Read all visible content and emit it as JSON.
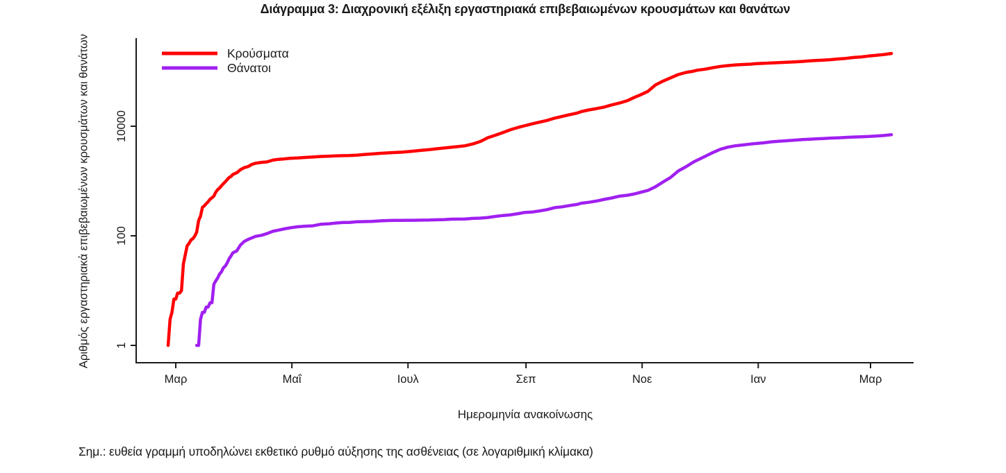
{
  "title": "Διάγραμμα 3: Διαχρονική εξέλιξη εργαστηριακά επιβεβαιωμένων κρουσμάτων και θανάτων",
  "note": "Σημ.: ευθεία γραμμή υποδηλώνει εκθετικό ρυθμό αύξησης της ασθένειας (σε λογαριθμική κλίμακα)",
  "chart_data": {
    "type": "line",
    "title": "Διάγραμμα 3: Διαχρονική εξέλιξη εργαστηριακά επιβεβαιωμένων κρουσμάτων και θανάτων",
    "xlabel": "Ημερομηνία ανακοίνωσης",
    "ylabel": "Αριθμός εργαστηριακά επιβεβαιωμένων κρουσμάτων και θανάτων",
    "y_scale": "log",
    "grid": false,
    "legend_position": "top-left",
    "y_ticks": [
      {
        "value": 1,
        "label": "1"
      },
      {
        "value": 100,
        "label": "100"
      },
      {
        "value": 10000,
        "label": "10000"
      }
    ],
    "x_ticks": [
      {
        "date": "2020-03-01",
        "label": "Μαρ"
      },
      {
        "date": "2020-05-01",
        "label": "Μαΐ"
      },
      {
        "date": "2020-07-01",
        "label": "Ιουλ"
      },
      {
        "date": "2020-09-01",
        "label": "Σεπ"
      },
      {
        "date": "2020-11-01",
        "label": "Νοε"
      },
      {
        "date": "2021-01-01",
        "label": "Ιαν"
      },
      {
        "date": "2021-03-01",
        "label": "Μαρ"
      }
    ],
    "series": [
      {
        "name": "Κρούσματα",
        "color": "#ff0000",
        "points": [
          [
            "2020-02-26",
            1
          ],
          [
            "2020-02-27",
            3
          ],
          [
            "2020-02-28",
            4
          ],
          [
            "2020-02-29",
            7
          ],
          [
            "2020-03-01",
            7
          ],
          [
            "2020-03-02",
            9
          ],
          [
            "2020-03-03",
            9
          ],
          [
            "2020-03-04",
            10
          ],
          [
            "2020-03-05",
            31
          ],
          [
            "2020-03-06",
            45
          ],
          [
            "2020-03-07",
            66
          ],
          [
            "2020-03-08",
            73
          ],
          [
            "2020-03-09",
            84
          ],
          [
            "2020-03-10",
            89
          ],
          [
            "2020-03-11",
            99
          ],
          [
            "2020-03-12",
            117
          ],
          [
            "2020-03-13",
            190
          ],
          [
            "2020-03-14",
            228
          ],
          [
            "2020-03-15",
            331
          ],
          [
            "2020-03-16",
            352
          ],
          [
            "2020-03-17",
            387
          ],
          [
            "2020-03-18",
            418
          ],
          [
            "2020-03-19",
            464
          ],
          [
            "2020-03-20",
            495
          ],
          [
            "2020-03-21",
            530
          ],
          [
            "2020-03-22",
            624
          ],
          [
            "2020-03-23",
            695
          ],
          [
            "2020-03-24",
            743
          ],
          [
            "2020-03-25",
            821
          ],
          [
            "2020-03-26",
            892
          ],
          [
            "2020-03-27",
            966
          ],
          [
            "2020-03-28",
            1061
          ],
          [
            "2020-03-29",
            1156
          ],
          [
            "2020-03-30",
            1212
          ],
          [
            "2020-03-31",
            1314
          ],
          [
            "2020-04-02",
            1415
          ],
          [
            "2020-04-04",
            1613
          ],
          [
            "2020-04-06",
            1755
          ],
          [
            "2020-04-08",
            1832
          ],
          [
            "2020-04-10",
            2011
          ],
          [
            "2020-04-12",
            2114
          ],
          [
            "2020-04-15",
            2192
          ],
          [
            "2020-04-18",
            2235
          ],
          [
            "2020-04-21",
            2401
          ],
          [
            "2020-04-24",
            2490
          ],
          [
            "2020-04-27",
            2534
          ],
          [
            "2020-04-30",
            2591
          ],
          [
            "2020-05-04",
            2632
          ],
          [
            "2020-05-08",
            2691
          ],
          [
            "2020-05-12",
            2744
          ],
          [
            "2020-05-16",
            2810
          ],
          [
            "2020-05-20",
            2840
          ],
          [
            "2020-05-24",
            2876
          ],
          [
            "2020-05-28",
            2906
          ],
          [
            "2020-05-31",
            2915
          ],
          [
            "2020-06-04",
            2967
          ],
          [
            "2020-06-08",
            3049
          ],
          [
            "2020-06-12",
            3121
          ],
          [
            "2020-06-16",
            3203
          ],
          [
            "2020-06-20",
            3256
          ],
          [
            "2020-06-24",
            3310
          ],
          [
            "2020-06-28",
            3366
          ],
          [
            "2020-06-30",
            3409
          ],
          [
            "2020-07-04",
            3511
          ],
          [
            "2020-07-08",
            3622
          ],
          [
            "2020-07-12",
            3732
          ],
          [
            "2020-07-16",
            3883
          ],
          [
            "2020-07-20",
            4007
          ],
          [
            "2020-07-24",
            4135
          ],
          [
            "2020-07-28",
            4279
          ],
          [
            "2020-07-31",
            4401
          ],
          [
            "2020-08-04",
            4737
          ],
          [
            "2020-08-08",
            5270
          ],
          [
            "2020-08-12",
            6177
          ],
          [
            "2020-08-16",
            6858
          ],
          [
            "2020-08-20",
            7684
          ],
          [
            "2020-08-24",
            8664
          ],
          [
            "2020-08-28",
            9531
          ],
          [
            "2020-08-31",
            10134
          ],
          [
            "2020-09-04",
            10998
          ],
          [
            "2020-09-08",
            11832
          ],
          [
            "2020-09-12",
            12734
          ],
          [
            "2020-09-16",
            14041
          ],
          [
            "2020-09-20",
            15142
          ],
          [
            "2020-09-24",
            16286
          ],
          [
            "2020-09-28",
            17444
          ],
          [
            "2020-09-30",
            18475
          ],
          [
            "2020-10-04",
            19842
          ],
          [
            "2020-10-08",
            20947
          ],
          [
            "2020-10-12",
            22358
          ],
          [
            "2020-10-16",
            24450
          ],
          [
            "2020-10-20",
            26469
          ],
          [
            "2020-10-24",
            29057
          ],
          [
            "2020-10-28",
            33752
          ],
          [
            "2020-10-31",
            37196
          ],
          [
            "2020-11-04",
            43216
          ],
          [
            "2020-11-08",
            56698
          ],
          [
            "2020-11-12",
            66637
          ],
          [
            "2020-11-16",
            76403
          ],
          [
            "2020-11-20",
            87812
          ],
          [
            "2020-11-24",
            95683
          ],
          [
            "2020-11-28",
            101287
          ],
          [
            "2020-11-30",
            105271
          ],
          [
            "2020-12-04",
            109655
          ],
          [
            "2020-12-08",
            116721
          ],
          [
            "2020-12-12",
            123185
          ],
          [
            "2020-12-16",
            127557
          ],
          [
            "2020-12-20",
            131577
          ],
          [
            "2020-12-24",
            133841
          ],
          [
            "2020-12-28",
            135931
          ],
          [
            "2020-12-31",
            138850
          ],
          [
            "2021-01-04",
            140526
          ],
          [
            "2021-01-08",
            142777
          ],
          [
            "2021-01-12",
            145179
          ],
          [
            "2021-01-16",
            147283
          ],
          [
            "2021-01-20",
            149718
          ],
          [
            "2021-01-24",
            151980
          ],
          [
            "2021-01-28",
            155678
          ],
          [
            "2021-01-31",
            158716
          ],
          [
            "2021-02-04",
            160958
          ],
          [
            "2021-02-08",
            164160
          ],
          [
            "2021-02-12",
            168896
          ],
          [
            "2021-02-16",
            172824
          ],
          [
            "2021-02-20",
            179802
          ],
          [
            "2021-02-24",
            183686
          ],
          [
            "2021-02-28",
            191100
          ],
          [
            "2021-03-04",
            196865
          ],
          [
            "2021-03-08",
            203413
          ],
          [
            "2021-03-12",
            212712
          ]
        ]
      },
      {
        "name": "Θάνατοι",
        "color": "#a020f0",
        "points": [
          [
            "2020-03-12",
            1
          ],
          [
            "2020-03-13",
            1
          ],
          [
            "2020-03-14",
            3
          ],
          [
            "2020-03-15",
            4
          ],
          [
            "2020-03-16",
            4
          ],
          [
            "2020-03-17",
            5
          ],
          [
            "2020-03-18",
            5
          ],
          [
            "2020-03-19",
            6
          ],
          [
            "2020-03-20",
            6
          ],
          [
            "2020-03-21",
            13
          ],
          [
            "2020-03-22",
            15
          ],
          [
            "2020-03-23",
            17
          ],
          [
            "2020-03-24",
            20
          ],
          [
            "2020-03-25",
            22
          ],
          [
            "2020-03-26",
            26
          ],
          [
            "2020-03-27",
            28
          ],
          [
            "2020-03-28",
            32
          ],
          [
            "2020-03-29",
            38
          ],
          [
            "2020-03-30",
            43
          ],
          [
            "2020-03-31",
            49
          ],
          [
            "2020-04-02",
            53
          ],
          [
            "2020-04-04",
            68
          ],
          [
            "2020-04-06",
            79
          ],
          [
            "2020-04-08",
            86
          ],
          [
            "2020-04-10",
            92
          ],
          [
            "2020-04-12",
            98
          ],
          [
            "2020-04-15",
            102
          ],
          [
            "2020-04-18",
            110
          ],
          [
            "2020-04-21",
            121
          ],
          [
            "2020-04-24",
            127
          ],
          [
            "2020-04-27",
            134
          ],
          [
            "2020-04-30",
            140
          ],
          [
            "2020-05-04",
            146
          ],
          [
            "2020-05-08",
            150
          ],
          [
            "2020-05-12",
            152
          ],
          [
            "2020-05-16",
            162
          ],
          [
            "2020-05-20",
            165
          ],
          [
            "2020-05-24",
            171
          ],
          [
            "2020-05-28",
            175
          ],
          [
            "2020-05-31",
            175
          ],
          [
            "2020-06-04",
            180
          ],
          [
            "2020-06-08",
            182
          ],
          [
            "2020-06-12",
            183
          ],
          [
            "2020-06-16",
            187
          ],
          [
            "2020-06-20",
            190
          ],
          [
            "2020-06-24",
            191
          ],
          [
            "2020-06-28",
            191
          ],
          [
            "2020-06-30",
            192
          ],
          [
            "2020-07-04",
            192
          ],
          [
            "2020-07-08",
            193
          ],
          [
            "2020-07-12",
            194
          ],
          [
            "2020-07-16",
            196
          ],
          [
            "2020-07-20",
            198
          ],
          [
            "2020-07-24",
            201
          ],
          [
            "2020-07-28",
            202
          ],
          [
            "2020-07-31",
            203
          ],
          [
            "2020-08-04",
            208
          ],
          [
            "2020-08-08",
            210
          ],
          [
            "2020-08-12",
            216
          ],
          [
            "2020-08-16",
            226
          ],
          [
            "2020-08-20",
            235
          ],
          [
            "2020-08-24",
            242
          ],
          [
            "2020-08-28",
            254
          ],
          [
            "2020-08-31",
            266
          ],
          [
            "2020-09-04",
            271
          ],
          [
            "2020-09-08",
            284
          ],
          [
            "2020-09-12",
            300
          ],
          [
            "2020-09-16",
            327
          ],
          [
            "2020-09-20",
            338
          ],
          [
            "2020-09-24",
            357
          ],
          [
            "2020-09-28",
            376
          ],
          [
            "2020-09-30",
            393
          ],
          [
            "2020-10-04",
            409
          ],
          [
            "2020-10-08",
            431
          ],
          [
            "2020-10-12",
            462
          ],
          [
            "2020-10-16",
            490
          ],
          [
            "2020-10-20",
            528
          ],
          [
            "2020-10-24",
            549
          ],
          [
            "2020-10-28",
            581
          ],
          [
            "2020-10-31",
            620
          ],
          [
            "2020-11-04",
            673
          ],
          [
            "2020-11-08",
            784
          ],
          [
            "2020-11-12",
            959
          ],
          [
            "2020-11-16",
            1165
          ],
          [
            "2020-11-20",
            1527
          ],
          [
            "2020-11-24",
            1815
          ],
          [
            "2020-11-28",
            2223
          ],
          [
            "2020-11-30",
            2406
          ],
          [
            "2020-12-04",
            2804
          ],
          [
            "2020-12-08",
            3289
          ],
          [
            "2020-12-12",
            3785
          ],
          [
            "2020-12-16",
            4143
          ],
          [
            "2020-12-20",
            4402
          ],
          [
            "2020-12-24",
            4553
          ],
          [
            "2020-12-28",
            4730
          ],
          [
            "2020-12-31",
            4838
          ],
          [
            "2021-01-04",
            4977
          ],
          [
            "2021-01-08",
            5195
          ],
          [
            "2021-01-12",
            5329
          ],
          [
            "2021-01-16",
            5441
          ],
          [
            "2021-01-20",
            5570
          ],
          [
            "2021-01-24",
            5692
          ],
          [
            "2021-01-28",
            5796
          ],
          [
            "2021-01-31",
            5878
          ],
          [
            "2021-02-04",
            5951
          ],
          [
            "2021-02-08",
            6077
          ],
          [
            "2021-02-12",
            6152
          ],
          [
            "2021-02-16",
            6249
          ],
          [
            "2021-02-20",
            6343
          ],
          [
            "2021-02-24",
            6418
          ],
          [
            "2021-02-28",
            6504
          ],
          [
            "2021-03-04",
            6632
          ],
          [
            "2021-03-08",
            6762
          ],
          [
            "2021-03-12",
            7007
          ]
        ]
      }
    ]
  }
}
